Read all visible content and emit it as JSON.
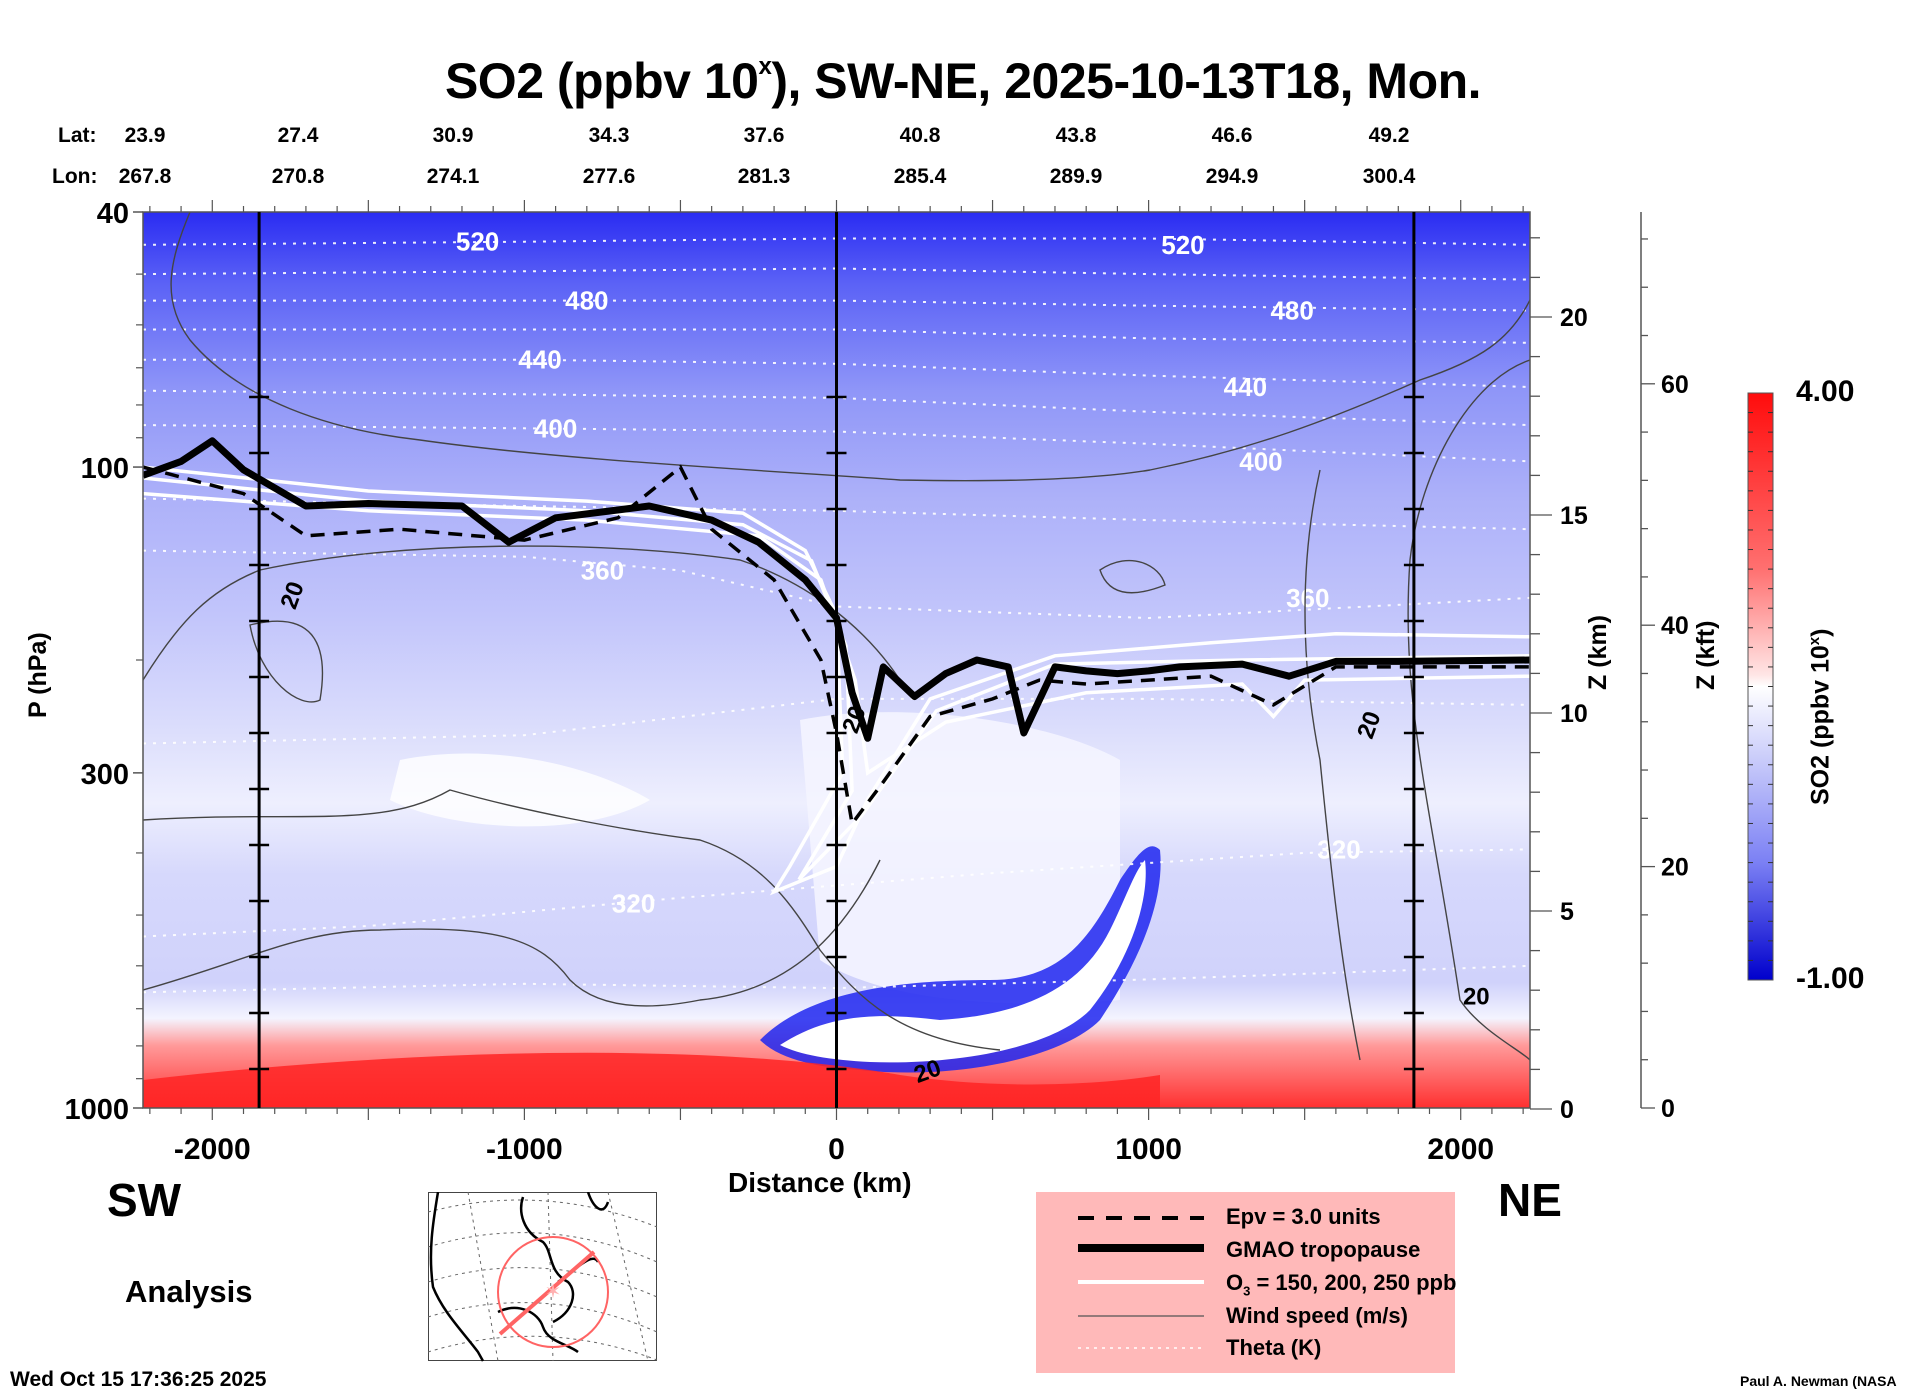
{
  "chart_data": {
    "type": "heatmap",
    "title_main": "SO2 (ppbv 10",
    "title_sup": "x",
    "title_rest": "), SW-NE, 2025-10-13T18, Mon.",
    "xlabel": "Distance (km)",
    "ylabel": "P (hPa)",
    "xlim": [
      -2222,
      2222
    ],
    "ylim": [
      1000,
      40
    ],
    "yscale": "log",
    "x_ticks": [
      -2000,
      -1000,
      0,
      1000,
      2000
    ],
    "x_tick_labels": [
      "-2000",
      "-1000",
      "0",
      "1000",
      "2000"
    ],
    "y_ticks": [
      40,
      100,
      300,
      1000
    ],
    "y_tick_labels": [
      "40",
      "100",
      "300",
      "1000"
    ],
    "z_km_axis": {
      "label": "Z (km)",
      "ticks": [
        0,
        5,
        10,
        15,
        20
      ],
      "tick_labels": [
        "0",
        "5",
        "10",
        "15",
        "20"
      ]
    },
    "z_kft_axis": {
      "label": "Z (kft)",
      "ticks": [
        0,
        20,
        40,
        60
      ],
      "tick_labels": [
        "0",
        "20",
        "40",
        "60"
      ]
    },
    "colorbar": {
      "label_main": "SO2 (ppbv 10",
      "label_sup": "x",
      "label_end": ")",
      "min": -1.0,
      "max": 4.0,
      "min_label": "-1.00",
      "max_label": "4.00",
      "levels": 30,
      "colors": [
        "#0000cc",
        "#ffffff",
        "#ff0000"
      ]
    },
    "reference_lines_km": [
      -1850,
      0,
      1850
    ],
    "lat_label": "Lat:",
    "lon_label": "Lon:",
    "lat": [
      "23.9",
      "27.4",
      "30.9",
      "34.3",
      "37.6",
      "40.8",
      "43.8",
      "46.6",
      "49.2"
    ],
    "lon": [
      "267.8",
      "270.8",
      "274.1",
      "277.6",
      "281.3",
      "285.4",
      "289.9",
      "294.9",
      "300.4"
    ],
    "theta_contours": [
      {
        "label": "520",
        "points": [
          [
            -2222,
            45
          ],
          [
            -1000,
            44.5
          ],
          [
            0,
            44
          ],
          [
            1000,
            44
          ],
          [
            2222,
            45
          ]
        ],
        "label_at": [
          -1150,
          44.5
        ]
      },
      {
        "label": "",
        "points": [
          [
            -2222,
            50
          ],
          [
            -1000,
            49.5
          ],
          [
            0,
            49
          ],
          [
            1000,
            50
          ],
          [
            2222,
            51
          ]
        ]
      },
      {
        "label": "480",
        "points": [
          [
            -2222,
            55
          ],
          [
            -1000,
            55
          ],
          [
            0,
            55
          ],
          [
            1000,
            56
          ],
          [
            2222,
            57
          ]
        ],
        "label_at": [
          -800,
          55
        ]
      },
      {
        "label": "",
        "points": [
          [
            -2222,
            61
          ],
          [
            -1000,
            61
          ],
          [
            0,
            61
          ],
          [
            1000,
            63
          ],
          [
            2222,
            64
          ]
        ]
      },
      {
        "label": "440",
        "points": [
          [
            -2222,
            68
          ],
          [
            -1000,
            68
          ],
          [
            0,
            69
          ],
          [
            1000,
            72
          ],
          [
            2222,
            75
          ]
        ],
        "label_at": [
          -950,
          68
        ]
      },
      {
        "label": "",
        "points": [
          [
            -2222,
            76
          ],
          [
            -1000,
            77
          ],
          [
            0,
            78
          ],
          [
            1000,
            82
          ],
          [
            2222,
            86
          ]
        ]
      },
      {
        "label": "400",
        "points": [
          [
            -2222,
            86
          ],
          [
            -1000,
            87
          ],
          [
            0,
            88
          ],
          [
            1000,
            92
          ],
          [
            2222,
            98
          ]
        ],
        "label_at": [
          -900,
          87
        ]
      },
      {
        "label": "",
        "points": [
          [
            -2222,
            112
          ],
          [
            -1000,
            115
          ],
          [
            0,
            117
          ],
          [
            1000,
            121
          ],
          [
            2222,
            125
          ]
        ]
      },
      {
        "label": "360",
        "points": [
          [
            -2222,
            135
          ],
          [
            -1000,
            138
          ],
          [
            -500,
            145
          ],
          [
            0,
            165
          ],
          [
            1000,
            172
          ],
          [
            2222,
            160
          ]
        ],
        "label_at": [
          -750,
          145
        ]
      },
      {
        "label": "",
        "points": [
          [
            -2222,
            270
          ],
          [
            -1000,
            262
          ],
          [
            0,
            230
          ],
          [
            1000,
            230
          ],
          [
            2222,
            235
          ]
        ]
      },
      {
        "label": "320",
        "points": [
          [
            -2222,
            540
          ],
          [
            -1500,
            520
          ],
          [
            -500,
            470
          ],
          [
            500,
            430
          ],
          [
            1500,
            400
          ],
          [
            2222,
            395
          ]
        ],
        "label_at": [
          -650,
          480
        ]
      },
      {
        "label": "",
        "points": [
          [
            -2222,
            660
          ],
          [
            -1000,
            640
          ],
          [
            0,
            650
          ],
          [
            1000,
            630
          ],
          [
            2222,
            600
          ]
        ]
      }
    ],
    "tropopause_hpa": [
      [
        -2222,
        103
      ],
      [
        -2100,
        98
      ],
      [
        -2000,
        91
      ],
      [
        -1900,
        101
      ],
      [
        -1700,
        115
      ],
      [
        -1500,
        114
      ],
      [
        -1200,
        115
      ],
      [
        -1050,
        131
      ],
      [
        -900,
        120
      ],
      [
        -600,
        115
      ],
      [
        -400,
        121
      ],
      [
        -250,
        131
      ],
      [
        -100,
        150
      ],
      [
        0,
        172
      ],
      [
        50,
        225
      ],
      [
        100,
        265
      ],
      [
        150,
        205
      ],
      [
        250,
        228
      ],
      [
        350,
        210
      ],
      [
        450,
        200
      ],
      [
        550,
        205
      ],
      [
        600,
        260
      ],
      [
        700,
        205
      ],
      [
        800,
        208
      ],
      [
        900,
        210
      ],
      [
        1000,
        208
      ],
      [
        1100,
        205
      ],
      [
        1300,
        203
      ],
      [
        1450,
        212
      ],
      [
        1600,
        201
      ],
      [
        1800,
        201
      ],
      [
        2222,
        200
      ]
    ],
    "epv_hpa": [
      [
        -2222,
        100
      ],
      [
        -1900,
        110
      ],
      [
        -1700,
        128
      ],
      [
        -1400,
        125
      ],
      [
        -1000,
        130
      ],
      [
        -700,
        120
      ],
      [
        -500,
        100
      ],
      [
        -400,
        125
      ],
      [
        -200,
        150
      ],
      [
        -50,
        200
      ],
      [
        0,
        260
      ],
      [
        50,
        360
      ],
      [
        150,
        310
      ],
      [
        300,
        245
      ],
      [
        500,
        230
      ],
      [
        650,
        215
      ],
      [
        800,
        218
      ],
      [
        1000,
        215
      ],
      [
        1200,
        212
      ],
      [
        1400,
        235
      ],
      [
        1600,
        205
      ],
      [
        2222,
        205
      ]
    ],
    "ozone_hpa": [
      [
        [
          -2222,
          100
        ],
        [
          -1500,
          109
        ],
        [
          -800,
          113
        ],
        [
          -300,
          118
        ],
        [
          -100,
          135
        ],
        [
          0,
          170
        ],
        [
          20,
          300
        ],
        [
          -150,
          420
        ],
        [
          -200,
          460
        ],
        [
          0,
          420
        ],
        [
          100,
          330
        ],
        [
          300,
          230
        ],
        [
          700,
          197
        ],
        [
          1200,
          188
        ],
        [
          1600,
          182
        ],
        [
          2222,
          184
        ]
      ],
      [
        [
          -2222,
          104
        ],
        [
          -1500,
          113
        ],
        [
          -800,
          117
        ],
        [
          -300,
          123
        ],
        [
          -80,
          140
        ],
        [
          30,
          190
        ],
        [
          50,
          320
        ],
        [
          -120,
          440
        ],
        [
          80,
          350
        ],
        [
          320,
          240
        ],
        [
          700,
          203
        ],
        [
          1300,
          200
        ],
        [
          2222,
          197
        ]
      ],
      [
        [
          -2222,
          110
        ],
        [
          -1500,
          117
        ],
        [
          -800,
          121
        ],
        [
          -250,
          128
        ],
        [
          -50,
          150
        ],
        [
          60,
          215
        ],
        [
          100,
          300
        ],
        [
          350,
          250
        ],
        [
          800,
          225
        ],
        [
          1300,
          218
        ],
        [
          1400,
          245
        ],
        [
          1500,
          215
        ],
        [
          2222,
          212
        ]
      ]
    ],
    "wind_label": "20"
  },
  "labels": {
    "sw": "SW",
    "ne": "NE",
    "analysis": "Analysis",
    "footer_date": "Wed Oct 15 17:36:25 2025",
    "credit": "Paul A. Newman (NASA"
  },
  "legend": [
    {
      "style": "dashed",
      "label": "Epv = 3.0 units"
    },
    {
      "style": "thick",
      "label": "GMAO tropopause"
    },
    {
      "style": "white",
      "label_pre": "O",
      "label_sub": "3",
      "label_post": " = 150, 200, 250 ppb"
    },
    {
      "style": "thin",
      "label": "Wind speed (m/s)"
    },
    {
      "style": "dotted",
      "label": "Theta (K)"
    }
  ]
}
